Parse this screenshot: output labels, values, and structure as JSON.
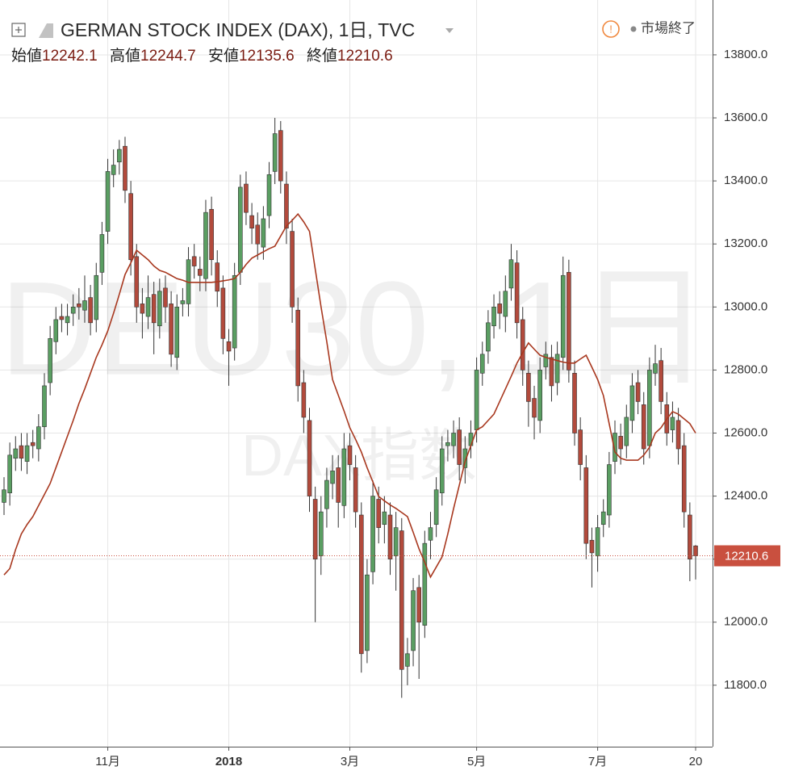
{
  "chart_data": {
    "type": "candlestick",
    "title": "GERMAN STOCK INDEX (DAX), 1日, TVC",
    "open_label": "始値",
    "high_label": "高値",
    "low_label": "安値",
    "close_label": "終値",
    "status": "市場終了",
    "watermark": "DEU30, 1日",
    "watermark_sub": "DAX指数",
    "categories": [
      null,
      null,
      null,
      null,
      null,
      null,
      null,
      null,
      null,
      null,
      null,
      null,
      null,
      null,
      null,
      null,
      null,
      null,
      "11月",
      null,
      null,
      null,
      null,
      null,
      null,
      null,
      null,
      null,
      null,
      null,
      null,
      null,
      null,
      null,
      null,
      null,
      null,
      null,
      null,
      "2018",
      null,
      null,
      null,
      null,
      null,
      null,
      null,
      null,
      null,
      null,
      null,
      null,
      null,
      null,
      null,
      null,
      null,
      null,
      null,
      null,
      "3月",
      null,
      null,
      null,
      null,
      null,
      null,
      null,
      null,
      null,
      null,
      null,
      null,
      null,
      null,
      null,
      null,
      null,
      null,
      null,
      null,
      null,
      "5月",
      null,
      null,
      null,
      null,
      null,
      null,
      null,
      null,
      null,
      null,
      null,
      null,
      null,
      null,
      null,
      null,
      null,
      null,
      null,
      null,
      "7月",
      null,
      null,
      null,
      null,
      null,
      null,
      null,
      null,
      null,
      null,
      null,
      null,
      null,
      null,
      null,
      null,
      "20"
    ],
    "open": [
      12380,
      12410,
      12520,
      12560,
      12510,
      12570,
      12550,
      12620,
      12760,
      12890,
      12970,
      12950,
      12980,
      13010,
      12990,
      13030,
      12960,
      13110,
      13240,
      13420,
      13460,
      13510,
      13360,
      13160,
      13010,
      12970,
      13040,
      12940,
      13060,
      13010,
      12840,
      13010,
      13010,
      13160,
      13120,
      13090,
      13310,
      13140,
      13060,
      12890,
      12870,
      13110,
      13390,
      13290,
      13260,
      13190,
      13290,
      13430,
      13560,
      13390,
      13240,
      12990,
      12760,
      12640,
      12390,
      12210,
      12360,
      12440,
      12490,
      12370,
      12560,
      12490,
      12340,
      11910,
      12160,
      12390,
      12310,
      12340,
      12210,
      12290,
      11860,
      11910,
      12110,
      11990,
      12260,
      12310,
      12410,
      12560,
      12560,
      12610,
      12490,
      12560,
      12610,
      12790,
      12860,
      12940,
      13010,
      12970,
      13060,
      13140,
      12960,
      12790,
      12710,
      12640,
      12810,
      12840,
      12760,
      12840,
      13110,
      12790,
      12610,
      12490,
      12260,
      12210,
      12310,
      12340,
      12510,
      12590,
      12560,
      12640,
      12760,
      12690,
      12560,
      12790,
      12830,
      12690,
      12610,
      12640,
      12560,
      12340,
      12242.1
    ],
    "high": [
      12460,
      12570,
      12590,
      12600,
      12600,
      12610,
      12660,
      12790,
      12940,
      13000,
      13010,
      13010,
      13040,
      13060,
      13100,
      13070,
      13140,
      13270,
      13470,
      13500,
      13530,
      13540,
      13400,
      13200,
      13060,
      13100,
      13080,
      13090,
      13100,
      13050,
      13040,
      13060,
      13190,
      13200,
      13160,
      13340,
      13350,
      13180,
      13100,
      12930,
      13140,
      13420,
      13430,
      13330,
      13300,
      13320,
      13460,
      13600,
      13590,
      13430,
      13280,
      13030,
      12800,
      12680,
      12430,
      12400,
      12490,
      12530,
      12530,
      12600,
      12600,
      12530,
      12380,
      12200,
      12450,
      12430,
      12400,
      12380,
      12350,
      12330,
      11950,
      12140,
      12150,
      12290,
      12350,
      12460,
      12590,
      12610,
      12640,
      12650,
      12590,
      12640,
      12840,
      12890,
      12990,
      13040,
      13050,
      13100,
      13200,
      13180,
      13000,
      12830,
      12750,
      12840,
      12890,
      12880,
      12890,
      13160,
      13150,
      12830,
      12650,
      12530,
      12300,
      12340,
      12390,
      12540,
      12640,
      12630,
      12690,
      12790,
      12800,
      12730,
      12840,
      12880,
      12870,
      12730,
      12700,
      12680,
      12600,
      12380,
      12244.7
    ],
    "low": [
      12340,
      12370,
      12480,
      12480,
      12470,
      12520,
      12510,
      12580,
      12720,
      12850,
      12920,
      12910,
      12940,
      12960,
      12950,
      12910,
      12920,
      13070,
      13200,
      13380,
      13420,
      13330,
      13100,
      12950,
      12900,
      12930,
      12850,
      12900,
      12950,
      12810,
      12800,
      12970,
      12970,
      13090,
      13050,
      13050,
      13100,
      13000,
      12850,
      12750,
      12830,
      13070,
      13260,
      13200,
      13150,
      13150,
      13250,
      13390,
      13360,
      13200,
      12950,
      12700,
      12600,
      12350,
      12000,
      12150,
      12300,
      12390,
      12300,
      12330,
      12450,
      12300,
      11840,
      11870,
      12120,
      12250,
      12250,
      12150,
      12100,
      11760,
      11800,
      11860,
      11820,
      11950,
      12200,
      12270,
      12370,
      12510,
      12520,
      12450,
      12440,
      12520,
      12570,
      12750,
      12820,
      12900,
      12930,
      12920,
      13020,
      12900,
      12750,
      12620,
      12580,
      12600,
      12770,
      12700,
      12720,
      12800,
      12760,
      12560,
      12450,
      12200,
      12110,
      12160,
      12270,
      12300,
      12470,
      12500,
      12520,
      12600,
      12660,
      12500,
      12520,
      12750,
      12660,
      12560,
      12570,
      12500,
      12300,
      12130,
      12135.6
    ],
    "close": [
      12420,
      12530,
      12550,
      12520,
      12560,
      12560,
      12620,
      12750,
      12900,
      12960,
      12960,
      12970,
      13000,
      13000,
      13020,
      12950,
      13100,
      13230,
      13430,
      13450,
      13500,
      13370,
      13150,
      13000,
      12980,
      13030,
      12950,
      13050,
      13000,
      12850,
      13000,
      13020,
      13150,
      13130,
      13100,
      13300,
      13150,
      13050,
      12900,
      12860,
      13100,
      13380,
      13300,
      13250,
      13200,
      13280,
      13420,
      13550,
      13400,
      13250,
      13000,
      12750,
      12650,
      12400,
      12200,
      12350,
      12450,
      12480,
      12380,
      12550,
      12500,
      12350,
      11900,
      12150,
      12400,
      12300,
      12350,
      12200,
      12300,
      11850,
      11900,
      12100,
      12000,
      12250,
      12300,
      12420,
      12550,
      12570,
      12600,
      12500,
      12550,
      12600,
      12800,
      12850,
      12950,
      13000,
      12980,
      13050,
      13150,
      12950,
      12800,
      12700,
      12650,
      12800,
      12850,
      12750,
      12850,
      13100,
      12800,
      12600,
      12500,
      12250,
      12220,
      12300,
      12350,
      12500,
      12600,
      12550,
      12650,
      12750,
      12700,
      12550,
      12800,
      12820,
      12700,
      12600,
      12650,
      12550,
      12350,
      12200,
      12210.6
    ],
    "up_color": "#5a9e62",
    "down_color": "#b24a3c",
    "lines": [
      {
        "color": "#a8381f",
        "values": [
          12150,
          12170,
          12230,
          12280,
          12310,
          12335,
          12370,
          12405,
          12440,
          12490,
          12540,
          12590,
          12640,
          12694,
          12740,
          12790,
          12840,
          12880,
          12924,
          12980,
          13040,
          13103,
          13140,
          13180,
          13165,
          13150,
          13130,
          13116,
          13110,
          13100,
          13090,
          13085,
          13078,
          13078,
          13078,
          13078,
          13078,
          13080,
          13083,
          13086,
          13090,
          13110,
          13135,
          13155,
          13165,
          13175,
          13185,
          13193,
          13225,
          13257,
          13275,
          13295,
          13270,
          13240,
          13120,
          13001,
          12890,
          12770,
          12720,
          12670,
          12617,
          12580,
          12540,
          12490,
          12445,
          12399,
          12385,
          12372,
          12361,
          12348,
          12335,
          12285,
          12233,
          12190,
          12143,
          12175,
          12207,
          12280,
          12360,
          12435,
          12510,
          12560,
          12610,
          12620,
          12640,
          12660,
          12700,
          12740,
          12780,
          12822,
          12855,
          12886,
          12866,
          12847,
          12840,
          12835,
          12830,
          12825,
          12822,
          12822,
          12835,
          12847,
          12809,
          12770,
          12719,
          12630,
          12540,
          12520,
          12514,
          12514,
          12514,
          12530,
          12555,
          12600,
          12617,
          12645,
          12668,
          12660,
          12645,
          12630,
          12600
        ]
      }
    ],
    "last_price_color": "#c9503f",
    "ylim": [
      11605,
      13974
    ],
    "yticks": [
      {
        "value": 11800,
        "label": "11800.0"
      },
      {
        "value": 12000,
        "label": "12000.0"
      },
      {
        "value": 12200,
        "label": "12200.0"
      },
      {
        "value": 12400,
        "label": "12400.0"
      },
      {
        "value": 12600,
        "label": "12600.0"
      },
      {
        "value": 12800,
        "label": "12800.0"
      },
      {
        "value": 13000,
        "label": "13000.0"
      },
      {
        "value": 13200,
        "label": "13200.0"
      },
      {
        "value": 13400,
        "label": "13400.0"
      },
      {
        "value": 13600,
        "label": "13600.0"
      },
      {
        "value": 13800,
        "label": "13800.0"
      }
    ],
    "grid": true
  }
}
